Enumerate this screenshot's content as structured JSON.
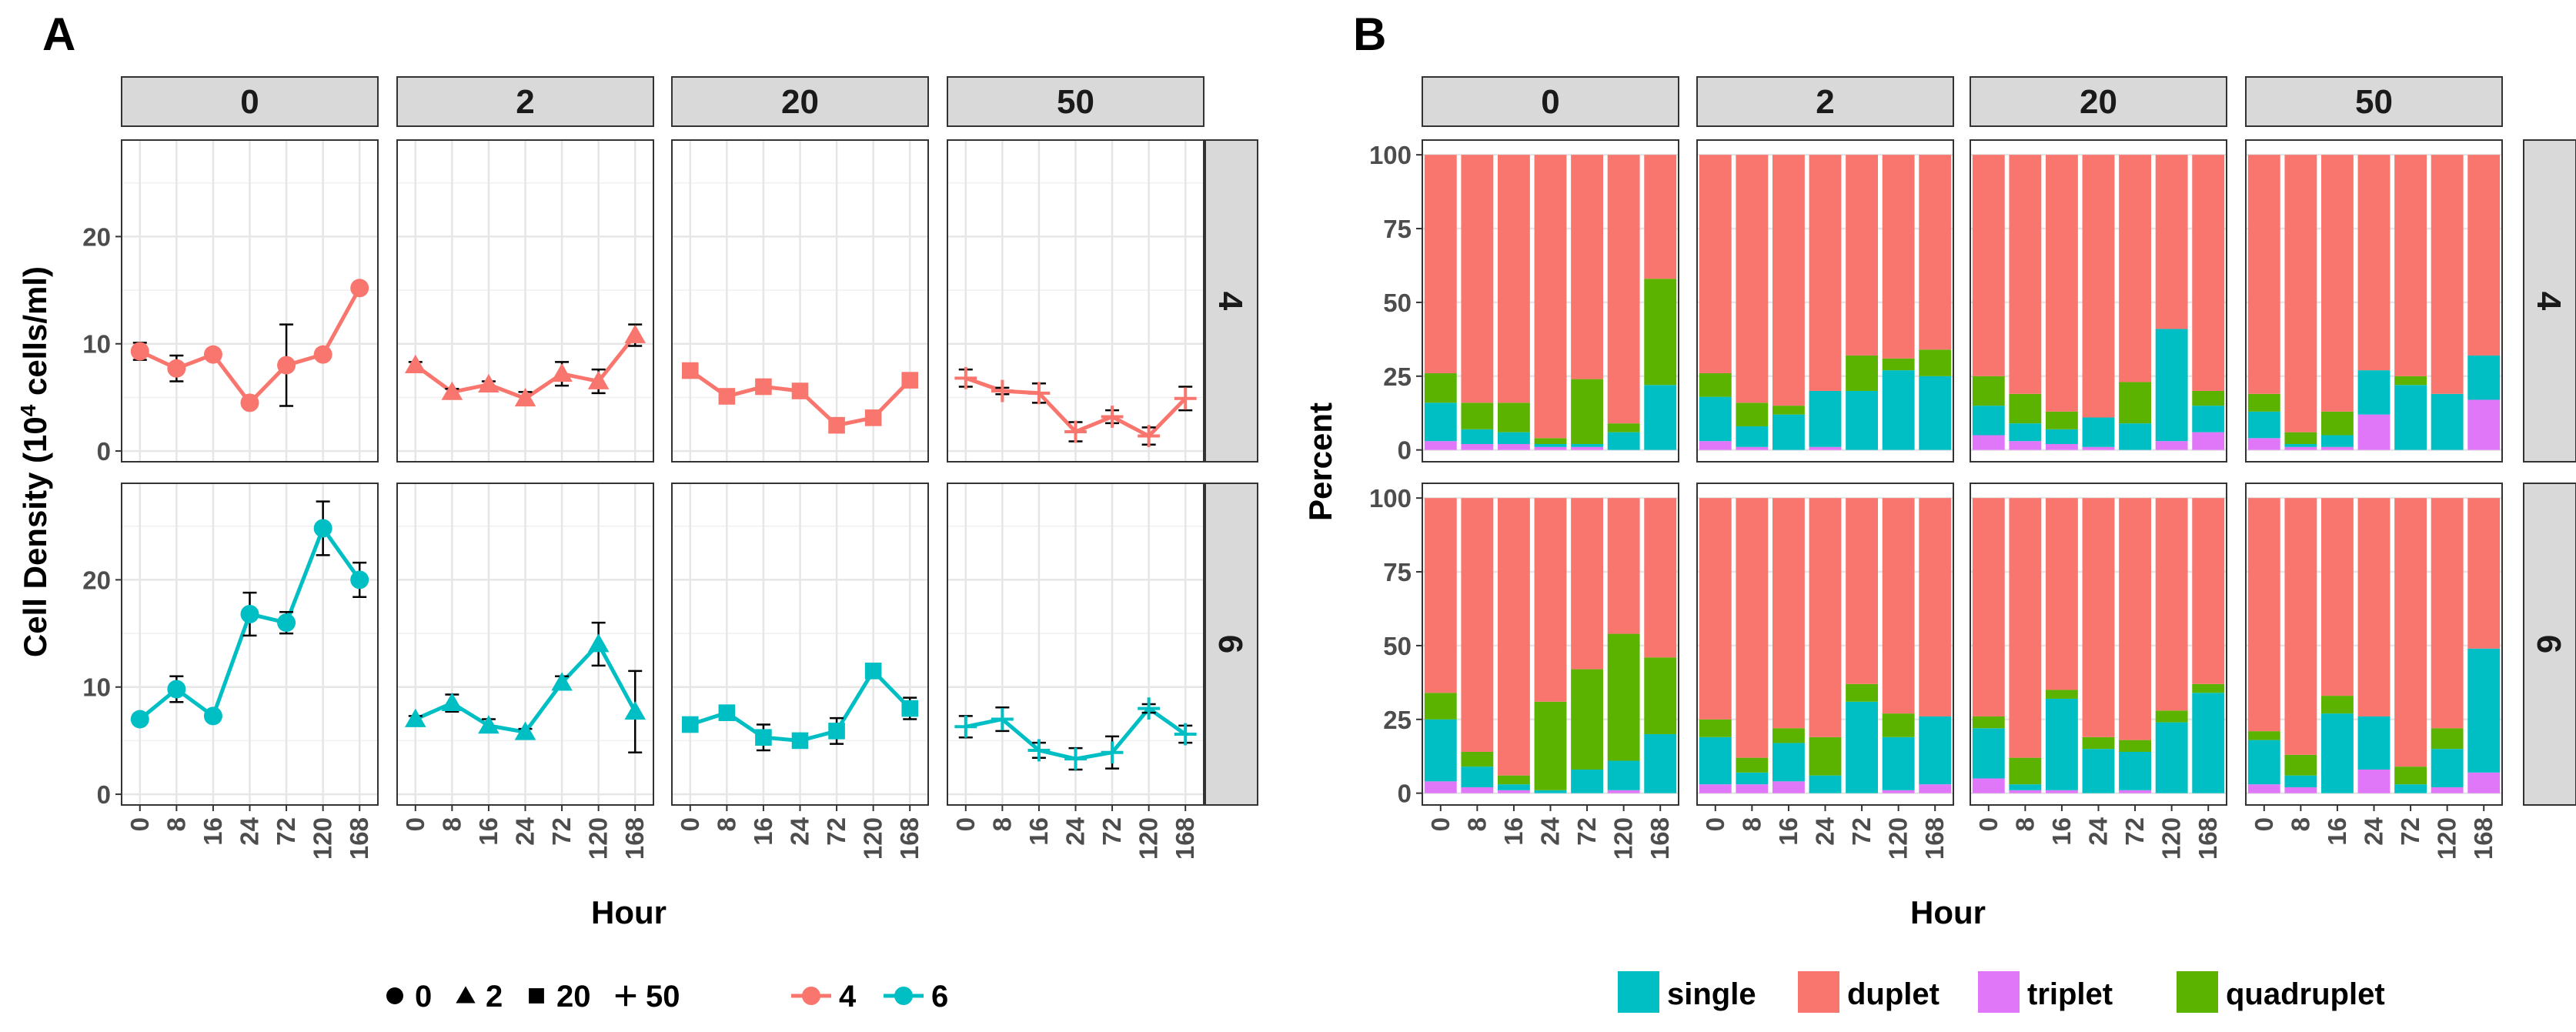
{
  "panel_a": {
    "letter": "A",
    "ylabel": "Cell Density (10",
    "ylabel_sup": "4",
    "ylabel_end": " cells/ml)",
    "xlabel": "Hour",
    "column_strips": [
      "0",
      "2",
      "20",
      "50"
    ],
    "row_strips": [
      "4",
      "6"
    ],
    "shape_legend": [
      {
        "shape": "circle",
        "label": "0"
      },
      {
        "shape": "triangle",
        "label": "2"
      },
      {
        "shape": "square",
        "label": "20"
      },
      {
        "shape": "plus",
        "label": "50"
      }
    ],
    "color_legend": [
      {
        "color": "#F8766D",
        "label": "4"
      },
      {
        "color": "#00BFC4",
        "label": "6"
      }
    ]
  },
  "panel_b": {
    "letter": "B",
    "ylabel": "Percent",
    "xlabel": "Hour",
    "column_strips": [
      "0",
      "2",
      "20",
      "50"
    ],
    "row_strips": [
      "4",
      "6"
    ],
    "legend": [
      {
        "color": "#00BFC4",
        "label": "single"
      },
      {
        "color": "#F8766D",
        "label": "duplet"
      },
      {
        "color": "#E076F8",
        "label": "triplet"
      },
      {
        "color": "#5BB300",
        "label": "quadruplet"
      }
    ]
  },
  "chart_data": [
    {
      "type": "line",
      "title": "A",
      "xlabel": "Hour",
      "ylabel": "Cell Density (10^4 cells/ml)",
      "x": [
        "0",
        "8",
        "16",
        "24",
        "72",
        "120",
        "168"
      ],
      "y_ticks": [
        0,
        10,
        20
      ],
      "ylim": [
        -1,
        29
      ],
      "facet_columns": [
        "0",
        "2",
        "20",
        "50"
      ],
      "facet_rows": [
        "4",
        "6"
      ],
      "series": [
        {
          "row": "4",
          "col": "0",
          "shape": "circle",
          "color": "#F8766D",
          "values": [
            9.3,
            7.7,
            9.0,
            4.5,
            8.0,
            9.0,
            15.2
          ],
          "errors": [
            0.8,
            1.2,
            0.4,
            0.4,
            3.8,
            0.4,
            0.4
          ]
        },
        {
          "row": "4",
          "col": "2",
          "shape": "triangle",
          "color": "#F8766D",
          "values": [
            8.0,
            5.5,
            6.2,
            4.9,
            7.2,
            6.5,
            10.8
          ],
          "errors": [
            0.3,
            0.3,
            0.3,
            0.6,
            1.1,
            1.1,
            1.0
          ]
        },
        {
          "row": "4",
          "col": "20",
          "shape": "square",
          "color": "#F8766D",
          "values": [
            7.5,
            5.1,
            6.0,
            5.6,
            2.4,
            3.1,
            6.6
          ],
          "errors": [
            0.3,
            0.3,
            0.3,
            0.3,
            0.3,
            0.3,
            0.3
          ]
        },
        {
          "row": "4",
          "col": "50",
          "shape": "plus",
          "color": "#F8766D",
          "values": [
            6.8,
            5.6,
            5.4,
            1.8,
            3.2,
            1.4,
            4.9
          ],
          "errors": [
            0.8,
            0.3,
            0.9,
            0.9,
            0.6,
            0.8,
            1.1
          ]
        },
        {
          "row": "6",
          "col": "0",
          "shape": "circle",
          "color": "#00BFC4",
          "values": [
            7.0,
            9.8,
            7.3,
            16.8,
            16.0,
            24.8,
            20.0
          ],
          "errors": [
            0.3,
            1.2,
            0.3,
            2.0,
            1.0,
            2.5,
            1.6
          ]
        },
        {
          "row": "6",
          "col": "2",
          "shape": "triangle",
          "color": "#00BFC4",
          "values": [
            7.0,
            8.5,
            6.4,
            5.8,
            10.4,
            14.0,
            7.7
          ],
          "errors": [
            0.3,
            0.8,
            0.6,
            0.3,
            0.6,
            2.0,
            3.8
          ]
        },
        {
          "row": "6",
          "col": "20",
          "shape": "square",
          "color": "#00BFC4",
          "values": [
            6.5,
            7.6,
            5.3,
            5.0,
            5.9,
            11.5,
            8.0
          ],
          "errors": [
            0.3,
            0.3,
            1.2,
            0.5,
            1.2,
            0.5,
            1.0
          ]
        },
        {
          "row": "6",
          "col": "50",
          "shape": "plus",
          "color": "#00BFC4",
          "values": [
            6.3,
            7.0,
            4.1,
            3.3,
            3.9,
            8.0,
            5.6
          ],
          "errors": [
            1.0,
            1.1,
            0.7,
            1.0,
            1.5,
            0.4,
            0.8
          ]
        }
      ]
    },
    {
      "type": "bar",
      "stacked": true,
      "title": "B",
      "xlabel": "Hour",
      "ylabel": "Percent",
      "categories": [
        "0",
        "8",
        "16",
        "24",
        "72",
        "120",
        "168"
      ],
      "y_ticks": [
        0,
        25,
        50,
        75,
        100
      ],
      "ylim": [
        -4,
        105
      ],
      "facet_columns": [
        "0",
        "2",
        "20",
        "50"
      ],
      "facet_rows": [
        "4",
        "6"
      ],
      "stack_order": [
        "triplet",
        "single",
        "quadruplet",
        "duplet"
      ],
      "colors": {
        "single": "#00BFC4",
        "duplet": "#F8766D",
        "triplet": "#E076F8",
        "quadruplet": "#5BB300"
      },
      "panels": [
        {
          "row": "4",
          "col": "0",
          "triplet": [
            3,
            2,
            2,
            1,
            1,
            0,
            0
          ],
          "single": [
            13,
            5,
            4,
            1,
            1,
            6,
            22
          ],
          "quadruplet": [
            10,
            9,
            10,
            2,
            22,
            3,
            36
          ]
        },
        {
          "row": "4",
          "col": "2",
          "triplet": [
            3,
            1,
            0,
            1,
            0,
            0,
            0
          ],
          "single": [
            15,
            7,
            12,
            19,
            20,
            27,
            25
          ],
          "quadruplet": [
            8,
            8,
            3,
            0,
            12,
            4,
            9
          ]
        },
        {
          "row": "4",
          "col": "20",
          "triplet": [
            5,
            3,
            2,
            1,
            0,
            3,
            6
          ],
          "single": [
            10,
            6,
            5,
            10,
            9,
            38,
            9
          ],
          "quadruplet": [
            10,
            10,
            6,
            0,
            14,
            0,
            5
          ]
        },
        {
          "row": "4",
          "col": "50",
          "triplet": [
            4,
            1,
            1,
            12,
            0,
            0,
            17
          ],
          "single": [
            9,
            1,
            4,
            15,
            22,
            19,
            15
          ],
          "quadruplet": [
            6,
            4,
            8,
            0,
            3,
            0,
            0
          ]
        },
        {
          "row": "6",
          "col": "0",
          "triplet": [
            4,
            2,
            1,
            0,
            0,
            1,
            0
          ],
          "single": [
            21,
            7,
            2,
            1,
            8,
            10,
            20
          ],
          "quadruplet": [
            9,
            5,
            3,
            30,
            34,
            43,
            26
          ]
        },
        {
          "row": "6",
          "col": "2",
          "triplet": [
            3,
            3,
            4,
            0,
            0,
            1,
            3
          ],
          "single": [
            16,
            4,
            13,
            6,
            31,
            18,
            23
          ],
          "quadruplet": [
            6,
            5,
            5,
            13,
            6,
            8,
            0
          ]
        },
        {
          "row": "6",
          "col": "20",
          "triplet": [
            5,
            1,
            1,
            0,
            1,
            0,
            0
          ],
          "single": [
            17,
            2,
            31,
            15,
            13,
            24,
            34
          ],
          "quadruplet": [
            4,
            9,
            3,
            4,
            4,
            4,
            3
          ]
        },
        {
          "row": "6",
          "col": "50",
          "triplet": [
            3,
            2,
            0,
            8,
            0,
            2,
            7
          ],
          "single": [
            15,
            4,
            27,
            18,
            3,
            13,
            42
          ],
          "quadruplet": [
            3,
            7,
            6,
            0,
            6,
            7,
            0
          ]
        }
      ]
    }
  ]
}
